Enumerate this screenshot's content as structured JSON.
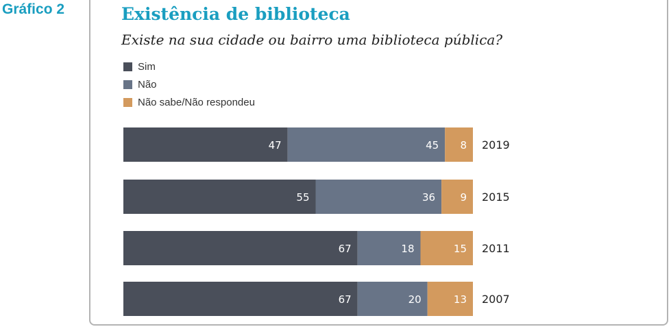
{
  "figure_label": "Gráfico 2",
  "chart_data": {
    "type": "bar",
    "orientation": "horizontal",
    "stacked": true,
    "title": "Existência de biblioteca",
    "subtitle": "Existe na sua cidade ou bairro uma biblioteca pública?",
    "categories": [
      "2019",
      "2015",
      "2011",
      "2007"
    ],
    "series": [
      {
        "name": "Sim",
        "color": "#4a4f5a",
        "values": [
          47,
          55,
          67,
          67
        ]
      },
      {
        "name": "Não",
        "color": "#687487",
        "values": [
          45,
          36,
          18,
          20
        ]
      },
      {
        "name": "Não sabe/Não respondeu",
        "color": "#d39a5e",
        "values": [
          8,
          9,
          15,
          13
        ]
      }
    ],
    "xlim": [
      0,
      100
    ],
    "unit": "%",
    "grid": false,
    "legend": "top-left"
  }
}
